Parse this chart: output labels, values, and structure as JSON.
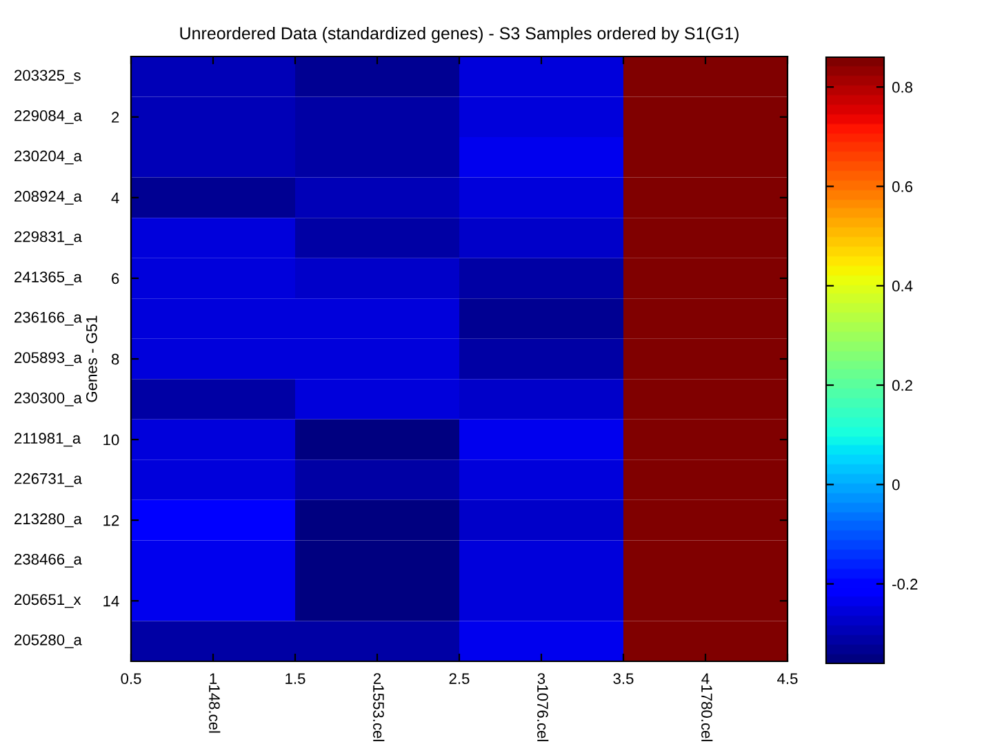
{
  "chart_data": {
    "type": "heatmap",
    "title": "Unreordered Data (standardized genes) - S3 Samples ordered by S1(G1)",
    "ylabel": "Genes - G51",
    "x": [
      1,
      2,
      3,
      4
    ],
    "xlim": [
      0.5,
      4.5
    ],
    "xticks": [
      0.5,
      1,
      1.5,
      2,
      2.5,
      3,
      3.5,
      4,
      4.5
    ],
    "y_categories": [
      "203325_s",
      "229084_a",
      "230204_a",
      "208924_a",
      "229831_a",
      "241365_a",
      "236166_a",
      "205893_a",
      "230300_a",
      "211981_a",
      "226731_a",
      "213280_a",
      "238466_a",
      "205651_x",
      "205280_a"
    ],
    "y2_categories": [
      null,
      "2",
      null,
      "4",
      null,
      "6",
      null,
      "8",
      null,
      "10",
      null,
      "12",
      null,
      "14",
      null
    ],
    "cells": [
      [
        -0.3,
        -0.34,
        -0.25,
        0.86
      ],
      [
        -0.3,
        -0.32,
        -0.25,
        0.86
      ],
      [
        -0.3,
        -0.32,
        -0.24,
        0.86
      ],
      [
        -0.33,
        -0.29,
        -0.26,
        0.86
      ],
      [
        -0.26,
        -0.31,
        -0.28,
        0.86
      ],
      [
        -0.25,
        -0.28,
        -0.31,
        0.86
      ],
      [
        -0.26,
        -0.26,
        -0.33,
        0.86
      ],
      [
        -0.26,
        -0.26,
        -0.31,
        0.86
      ],
      [
        -0.32,
        -0.25,
        -0.28,
        0.86
      ],
      [
        -0.25,
        -0.35,
        -0.24,
        0.86
      ],
      [
        -0.25,
        -0.32,
        -0.25,
        0.86
      ],
      [
        -0.21,
        -0.36,
        -0.27,
        0.86
      ],
      [
        -0.23,
        -0.35,
        -0.25,
        0.86
      ],
      [
        -0.23,
        -0.35,
        -0.25,
        0.86
      ],
      [
        -0.32,
        -0.31,
        -0.23,
        0.86
      ]
    ],
    "clim": [
      -0.36,
      0.86
    ],
    "cticks": [
      -0.2,
      0,
      0.2,
      0.4,
      0.6,
      0.8
    ],
    "annotations": [
      "148.cel",
      "1553.cel",
      "1076.cel",
      "1780.cel"
    ]
  }
}
